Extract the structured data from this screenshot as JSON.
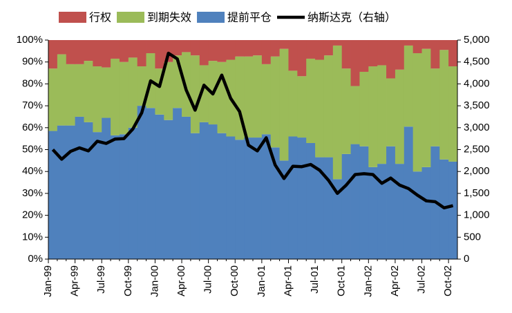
{
  "chart_data": {
    "type": "stacked_bar_line",
    "categories": [
      "Jan-99",
      null,
      null,
      "Apr-99",
      null,
      null,
      "Jul-99",
      null,
      null,
      "Oct-99",
      null,
      null,
      "Jan-00",
      null,
      null,
      "Apr-00",
      null,
      null,
      "Jul-00",
      null,
      null,
      "Oct-00",
      null,
      null,
      "Jan-01",
      null,
      null,
      "Apr-01",
      null,
      null,
      "Jul-01",
      null,
      null,
      "Oct-01",
      null,
      null,
      "Jan-02",
      null,
      null,
      "Apr-02",
      null,
      null,
      "Jul-02",
      null,
      null,
      "Oct-02"
    ],
    "series": [
      {
        "name": "提前平仓",
        "color": "#4f81bd",
        "values": [
          58.5,
          61,
          61,
          65,
          62.5,
          58,
          64.5,
          56.5,
          57,
          60,
          70,
          69,
          66,
          63.5,
          69,
          65,
          57.5,
          62.5,
          61.5,
          57.5,
          56,
          54.5,
          55.5,
          55.5,
          57,
          51,
          45,
          56,
          55.5,
          53,
          46.5,
          46.5,
          36.5,
          48,
          52.5,
          51.5,
          42,
          43.5,
          51.5,
          43.5,
          60.5,
          40,
          42,
          51.5,
          45.5,
          44.5
        ]
      },
      {
        "name": "到期失效",
        "color": "#9bbb59",
        "values": [
          28.5,
          32.5,
          28,
          24,
          28,
          30,
          23,
          35,
          33,
          32,
          18,
          25,
          21,
          26.5,
          24,
          29.5,
          35.5,
          26,
          29,
          32.5,
          35,
          38,
          37,
          37.5,
          32,
          41.5,
          51,
          30,
          28,
          38.5,
          44.5,
          46.5,
          61,
          39,
          26.5,
          34,
          46,
          45,
          31,
          43,
          37,
          54,
          54,
          35.5,
          50,
          43.5
        ]
      },
      {
        "name": "行权",
        "color": "#c0504d",
        "values": [
          13,
          6.5,
          11,
          11,
          9.5,
          12,
          12.5,
          8.5,
          10,
          8,
          12,
          6,
          13,
          10,
          7,
          5.5,
          7,
          11.5,
          9.5,
          10,
          9,
          7.5,
          7.5,
          7,
          11,
          7.5,
          4,
          14,
          16.5,
          8.5,
          9,
          7,
          2.5,
          13,
          21,
          14.5,
          12,
          11.5,
          17.5,
          13.5,
          2.5,
          6,
          4,
          13,
          4.5,
          12
        ]
      },
      {
        "name": "纳斯达克（右轴）",
        "color": "#000000",
        "axis": "y2",
        "values": [
          2500,
          2280,
          2460,
          2540,
          2470,
          2690,
          2640,
          2740,
          2750,
          2970,
          3340,
          4070,
          3940,
          4700,
          4570,
          3860,
          3400,
          3970,
          3770,
          4200,
          3670,
          3370,
          2600,
          2470,
          2770,
          2150,
          1840,
          2120,
          2110,
          2160,
          2030,
          1800,
          1500,
          1690,
          1930,
          1950,
          1930,
          1730,
          1850,
          1690,
          1610,
          1460,
          1330,
          1310,
          1170,
          1220
        ]
      }
    ],
    "ylim": [
      0,
      100
    ],
    "yticks": [
      {
        "value": 0,
        "label": "0%"
      },
      {
        "value": 10,
        "label": "10%"
      },
      {
        "value": 20,
        "label": "20%"
      },
      {
        "value": 30,
        "label": "30%"
      },
      {
        "value": 40,
        "label": "40%"
      },
      {
        "value": 50,
        "label": "50%"
      },
      {
        "value": 60,
        "label": "60%"
      },
      {
        "value": 70,
        "label": "70%"
      },
      {
        "value": 80,
        "label": "80%"
      },
      {
        "value": 90,
        "label": "90%"
      },
      {
        "value": 100,
        "label": "100%"
      }
    ],
    "y2lim": [
      0,
      5000
    ],
    "y2ticks": [
      0,
      500,
      {
        "value": 1000,
        "label": "1,000"
      },
      {
        "value": 1500,
        "label": "1,500"
      },
      {
        "value": 2000,
        "label": "2,000"
      },
      {
        "value": 2500,
        "label": "2,500"
      },
      {
        "value": 3000,
        "label": "3,000"
      },
      {
        "value": 3500,
        "label": "3,500"
      },
      {
        "value": 4000,
        "label": "4,000"
      },
      {
        "value": 4500,
        "label": "4,500"
      },
      {
        "value": 5000,
        "label": "5,000"
      }
    ],
    "legend": "top"
  }
}
